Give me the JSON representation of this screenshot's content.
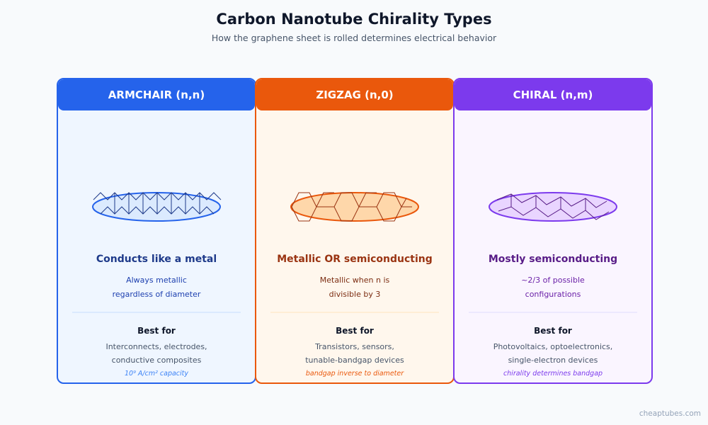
{
  "title": "Carbon Nanotube Chirality Types",
  "subtitle": "How the graphene sheet is rolled determines electrical behavior",
  "cards": [
    {
      "header": "ARMCHAIR (n,n)",
      "headline": "Conducts like a metal",
      "desc": [
        "Always metallic",
        "regardless of diameter"
      ],
      "best_for_label": "Best for",
      "best_for": [
        "Interconnects, electrodes,",
        "conductive composites"
      ],
      "note": "10⁹ A/cm² capacity",
      "accent": "#2563eb"
    },
    {
      "header": "ZIGZAG (n,0)",
      "headline": "Metallic OR semiconducting",
      "desc": [
        "Metallic when n is",
        "divisible by 3"
      ],
      "best_for_label": "Best for",
      "best_for": [
        "Transistors, sensors,",
        "tunable-bandgap devices"
      ],
      "note": "bandgap inverse to diameter",
      "accent": "#ea580c"
    },
    {
      "header": "CHIRAL (n,m)",
      "headline": "Mostly semiconducting",
      "desc": [
        "~2/3 of possible",
        "configurations"
      ],
      "best_for_label": "Best for",
      "best_for": [
        "Photovoltaics, optoelectronics,",
        "single-electron devices"
      ],
      "note": "chirality determines bandgap",
      "accent": "#7c3aed"
    }
  ],
  "watermark": "cheaptubes.com"
}
